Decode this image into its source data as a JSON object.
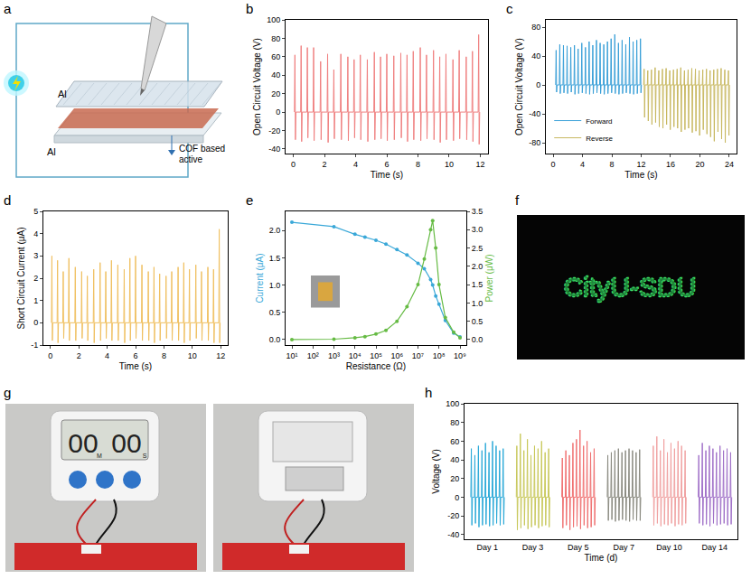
{
  "chart_data": [
    {
      "panel": "b",
      "type": "line",
      "x_label": "Time (s)",
      "y_label": "Open Circuit Voltage (V)",
      "xlim": [
        -0.5,
        12.5
      ],
      "xticks": [
        0,
        2,
        4,
        6,
        8,
        10,
        12
      ],
      "ylim": [
        -45,
        100
      ],
      "yticks": [
        -40,
        -20,
        0,
        20,
        40,
        60,
        80,
        100
      ],
      "grid": false,
      "series": [
        {
          "color": "#f08080",
          "pulse_times": [
            0.1,
            0.5,
            0.9,
            1.3,
            1.75,
            2.2,
            2.6,
            3.05,
            3.5,
            3.9,
            4.3,
            4.75,
            5.2,
            5.6,
            6.0,
            6.45,
            6.9,
            7.3,
            7.7,
            8.15,
            8.55,
            9.0,
            9.4,
            9.8,
            10.25,
            10.65,
            11.1,
            11.5,
            11.9
          ],
          "positive_peaks": [
            62,
            72,
            70,
            70,
            55,
            63,
            46,
            63,
            60,
            57,
            62,
            57,
            65,
            60,
            63,
            61,
            64,
            62,
            66,
            70,
            62,
            67,
            60,
            63,
            57,
            67,
            60,
            66,
            84
          ],
          "negative_peaks": [
            -30,
            -32,
            -28,
            -31,
            -30,
            -33,
            -29,
            -30,
            -31,
            -28,
            -30,
            -32,
            -30,
            -29,
            -31,
            -30,
            -28,
            -32,
            -30,
            -31,
            -29,
            -30,
            -33,
            -30,
            -31,
            -29,
            -30,
            -32,
            -35
          ]
        }
      ]
    },
    {
      "panel": "c",
      "type": "line",
      "x_label": "Time (s)",
      "y_label": "Open Circuit Voltage (V)",
      "xlim": [
        -1,
        25
      ],
      "xticks": [
        0,
        4,
        8,
        12,
        16,
        20,
        24
      ],
      "ylim": [
        -95,
        90
      ],
      "yticks": [
        -80,
        -40,
        0,
        40,
        80
      ],
      "grid": false,
      "legend": "lower left",
      "series": [
        {
          "name": "Forward",
          "color": "#3aa0d8",
          "pulse_times": [
            0.4,
            0.9,
            1.4,
            1.9,
            2.4,
            2.9,
            3.4,
            3.9,
            4.4,
            4.9,
            5.4,
            5.9,
            6.4,
            6.9,
            7.4,
            7.9,
            8.4,
            8.9,
            9.4,
            9.9,
            10.4,
            10.9,
            11.4,
            11.9
          ],
          "positive_peaks": [
            48,
            56,
            55,
            54,
            52,
            55,
            50,
            58,
            52,
            60,
            55,
            62,
            58,
            56,
            60,
            64,
            70,
            58,
            62,
            56,
            66,
            60,
            62,
            64
          ],
          "negative_peaks": [
            -10,
            -12,
            -11,
            -12,
            -10,
            -13,
            -12,
            -11,
            -12,
            -13,
            -12,
            -11,
            -12,
            -13,
            -12,
            -11,
            -12,
            -13,
            -12,
            -11,
            -12,
            -13,
            -12,
            -11
          ]
        },
        {
          "name": "Reverse",
          "color": "#c8b860",
          "pulse_times": [
            12.4,
            12.9,
            13.4,
            13.9,
            14.4,
            14.9,
            15.4,
            15.9,
            16.4,
            16.9,
            17.4,
            17.9,
            18.4,
            18.9,
            19.4,
            19.9,
            20.4,
            20.9,
            21.4,
            21.9,
            22.4,
            22.9,
            23.4,
            23.9
          ],
          "positive_peaks": [
            22,
            20,
            21,
            24,
            20,
            22,
            23,
            20,
            21,
            22,
            24,
            20,
            21,
            23,
            22,
            20,
            21,
            22,
            20,
            21,
            22,
            23,
            21,
            20
          ],
          "negative_peaks": [
            -45,
            -50,
            -55,
            -52,
            -58,
            -60,
            -55,
            -62,
            -58,
            -60,
            -65,
            -62,
            -60,
            -66,
            -64,
            -70,
            -62,
            -68,
            -72,
            -78,
            -65,
            -75,
            -80,
            -70
          ]
        }
      ]
    },
    {
      "panel": "d",
      "type": "line",
      "x_label": "Time (s)",
      "y_label": "Short Circuit Current (μA)",
      "xlim": [
        -0.5,
        12.5
      ],
      "xticks": [
        0,
        2,
        4,
        6,
        8,
        10,
        12
      ],
      "ylim": [
        -1,
        5
      ],
      "yticks": [
        -1,
        0,
        1,
        2,
        3,
        4,
        5
      ],
      "grid": false,
      "series": [
        {
          "color": "#f0c060",
          "pulse_times": [
            0.1,
            0.5,
            0.9,
            1.3,
            1.75,
            2.2,
            2.6,
            3.05,
            3.5,
            3.9,
            4.3,
            4.75,
            5.2,
            5.6,
            6.0,
            6.45,
            6.9,
            7.3,
            7.7,
            8.15,
            8.55,
            9.0,
            9.4,
            9.8,
            10.25,
            10.65,
            11.1,
            11.5,
            11.9
          ],
          "positive_peaks": [
            3.0,
            2.8,
            2.3,
            2.9,
            2.5,
            2.3,
            2.1,
            2.4,
            2.7,
            2.3,
            2.8,
            2.6,
            2.4,
            2.9,
            3.0,
            2.6,
            2.3,
            2.5,
            2.2,
            2.1,
            2.3,
            2.5,
            2.7,
            2.4,
            2.6,
            2.3,
            2.5,
            2.4,
            4.2
          ],
          "negative_peaks": [
            -0.8,
            -0.9,
            -0.7,
            -0.8,
            -0.8,
            -0.7,
            -0.8,
            -0.9,
            -0.8,
            -0.7,
            -0.8,
            -0.8,
            -0.9,
            -0.8,
            -0.7,
            -0.8,
            -0.8,
            -0.9,
            -0.8,
            -0.7,
            -0.8,
            -0.8,
            -0.9,
            -0.8,
            -0.7,
            -0.8,
            -0.8,
            -0.9,
            -0.9
          ]
        }
      ]
    },
    {
      "panel": "e",
      "type": "line",
      "log": "x",
      "marker": "circle",
      "x_label": "Resistance (Ω)",
      "y_label": "Current (μA)",
      "y2_label": "Power (μW)",
      "xlim": [
        5,
        2000000000
      ],
      "xticks": [
        {
          "value": 10,
          "label": "10¹"
        },
        {
          "value": 100,
          "label": "10²"
        },
        {
          "value": 1000,
          "label": "10³"
        },
        {
          "value": 10000,
          "label": "10⁴"
        },
        {
          "value": 100000,
          "label": "10⁵"
        },
        {
          "value": 1000000,
          "label": "10⁶"
        },
        {
          "value": 10000000,
          "label": "10⁷"
        },
        {
          "value": 100000000,
          "label": "10⁸"
        },
        {
          "value": 1000000000,
          "label": "10⁹"
        }
      ],
      "ylim": [
        -0.1,
        2.35
      ],
      "yticks": [
        {
          "value": 0,
          "label": "0.0"
        },
        {
          "value": 0.5,
          "label": "0.5"
        },
        {
          "value": 1,
          "label": "1.0"
        },
        {
          "value": 1.5,
          "label": "1.5"
        },
        {
          "value": 2,
          "label": "2.0"
        }
      ],
      "y2lim": [
        -0.15,
        3.5
      ],
      "y2ticks": [
        {
          "value": 0,
          "label": "0.0"
        },
        {
          "value": 0.5,
          "label": "0.5"
        },
        {
          "value": 1,
          "label": "1.0"
        },
        {
          "value": 1.5,
          "label": "1.5"
        },
        {
          "value": 2,
          "label": "2.0"
        },
        {
          "value": 2.5,
          "label": "2.5"
        },
        {
          "value": 3,
          "label": "3.0"
        },
        {
          "value": 3.5,
          "label": "3.5"
        }
      ],
      "grid": false,
      "x": [
        10,
        1000,
        10000,
        30000,
        100000,
        300000,
        1000000,
        3000000,
        10000000,
        20000000,
        40000000,
        50000000,
        70000000,
        100000000,
        200000000,
        500000000,
        1000000000
      ],
      "series": [
        {
          "axis": "y",
          "color": "#3aa8d8",
          "values": [
            2.15,
            2.07,
            1.93,
            1.88,
            1.82,
            1.75,
            1.65,
            1.55,
            1.4,
            1.3,
            1.1,
            1.0,
            0.8,
            0.65,
            0.35,
            0.12,
            0.05
          ]
        },
        {
          "axis": "y2",
          "color": "#66bb44",
          "values": [
            0,
            0.01,
            0.05,
            0.08,
            0.15,
            0.25,
            0.5,
            0.9,
            1.5,
            2.2,
            3.0,
            3.25,
            2.5,
            1.5,
            0.6,
            0.2,
            0.05
          ]
        }
      ]
    },
    {
      "panel": "h",
      "type": "line",
      "x_label": "Time (d)",
      "y_label": "Voltage (V)",
      "categories": [
        "Day 1",
        "Day 3",
        "Day 5",
        "Day 7",
        "Day 10",
        "Day 14"
      ],
      "ylim": [
        -45,
        100
      ],
      "yticks": [
        -40,
        -20,
        0,
        20,
        40,
        60,
        80,
        100
      ],
      "grid": false,
      "series": [
        {
          "color": "#2aa9d8",
          "positive_peaks": [
            52,
            45,
            55,
            50,
            58,
            48,
            60,
            55,
            50,
            52
          ],
          "negative_peaks": [
            -30,
            -28,
            -32,
            -30,
            -29,
            -31,
            -30,
            -28,
            -30,
            -29
          ]
        },
        {
          "color": "#c8c85a",
          "positive_peaks": [
            55,
            68,
            50,
            62,
            45,
            55,
            52,
            60,
            48,
            52
          ],
          "negative_peaks": [
            -35,
            -33,
            -30,
            -34,
            -32,
            -30,
            -33,
            -31,
            -30,
            -32
          ]
        },
        {
          "color": "#f07070",
          "positive_peaks": [
            42,
            50,
            45,
            58,
            62,
            72,
            55,
            60,
            48,
            52
          ],
          "negative_peaks": [
            -33,
            -30,
            -35,
            -32,
            -31,
            -34,
            -30,
            -33,
            -32,
            -30
          ]
        },
        {
          "color": "#8a8a80",
          "positive_peaks": [
            45,
            48,
            50,
            52,
            48,
            50,
            52,
            50,
            48,
            51
          ],
          "negative_peaks": [
            -25,
            -24,
            -26,
            -25,
            -24,
            -25,
            -26,
            -24,
            -25,
            -25
          ]
        },
        {
          "color": "#f0a0a0",
          "positive_peaks": [
            55,
            65,
            50,
            62,
            48,
            58,
            52,
            60,
            55,
            50
          ],
          "negative_peaks": [
            -30,
            -28,
            -31,
            -29,
            -30,
            -28,
            -31,
            -29,
            -30,
            -28
          ]
        },
        {
          "color": "#a070c8",
          "positive_peaks": [
            45,
            58,
            50,
            55,
            52,
            48,
            55,
            50,
            52,
            48
          ],
          "negative_peaks": [
            -28,
            -30,
            -29,
            -31,
            -28,
            -30,
            -29,
            -28,
            -30,
            -29
          ]
        }
      ]
    }
  ],
  "diagram": {
    "panel": "a",
    "top_electrode": "Al",
    "bottom_electrode": "Al",
    "layer_label": "COF based active"
  },
  "photos": [
    {
      "panel": "f",
      "text": "CityU-SDU"
    },
    {
      "panel": "g",
      "timer_digits": [
        "00",
        "00"
      ],
      "timer_units": [
        "M",
        "S"
      ]
    }
  ]
}
